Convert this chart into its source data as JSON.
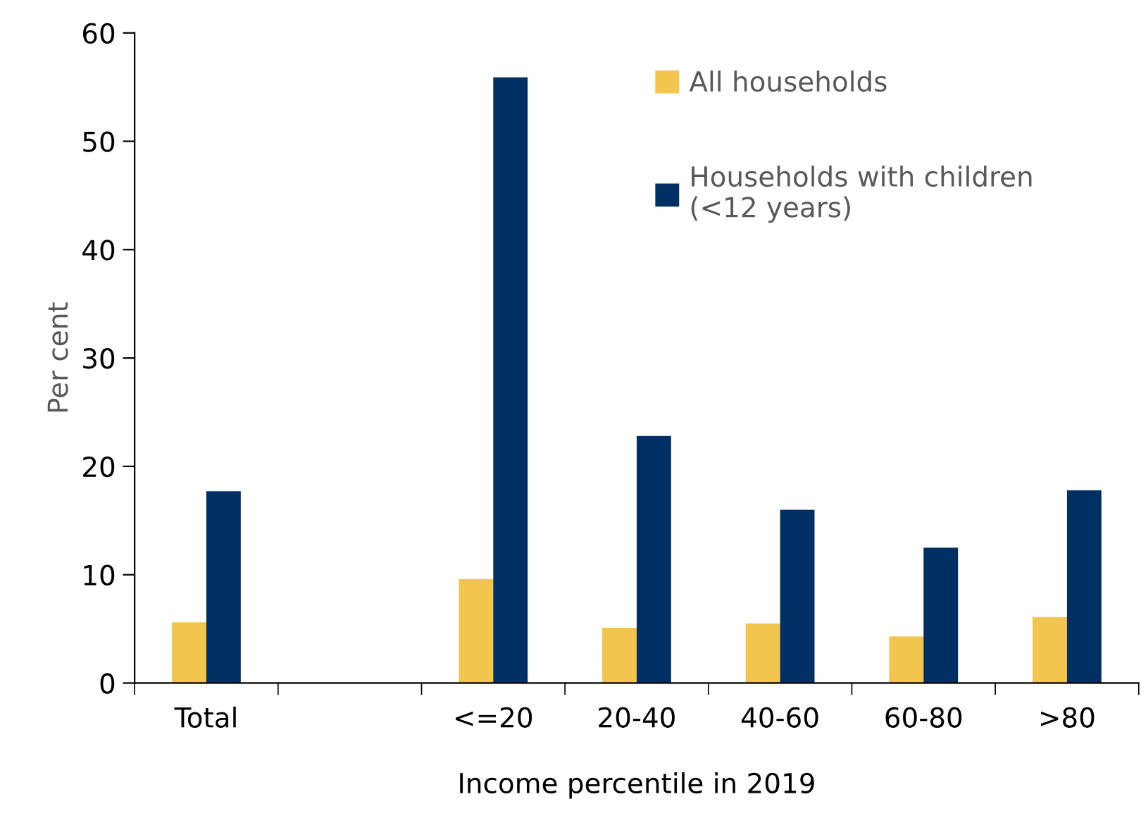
{
  "chart_data": {
    "type": "bar",
    "xlabel": "Income percentile in 2019",
    "ylabel": "Per cent",
    "categories": [
      "Total",
      null,
      "<=20",
      "20-40",
      "40-60",
      "60-80",
      ">80"
    ],
    "series": [
      {
        "name": "All households",
        "color": "#f2c54e",
        "values": [
          5.6,
          null,
          9.6,
          5.1,
          5.5,
          4.3,
          6.1
        ]
      },
      {
        "name": "Households with children\n(<12 years)",
        "color": "#003063",
        "values": [
          17.7,
          null,
          55.9,
          22.8,
          16.0,
          12.5,
          17.8
        ]
      }
    ],
    "ylim": [
      0,
      60
    ],
    "yticks": [
      0,
      10,
      20,
      30,
      40,
      50,
      60
    ],
    "grid": false,
    "legend": "top right"
  }
}
